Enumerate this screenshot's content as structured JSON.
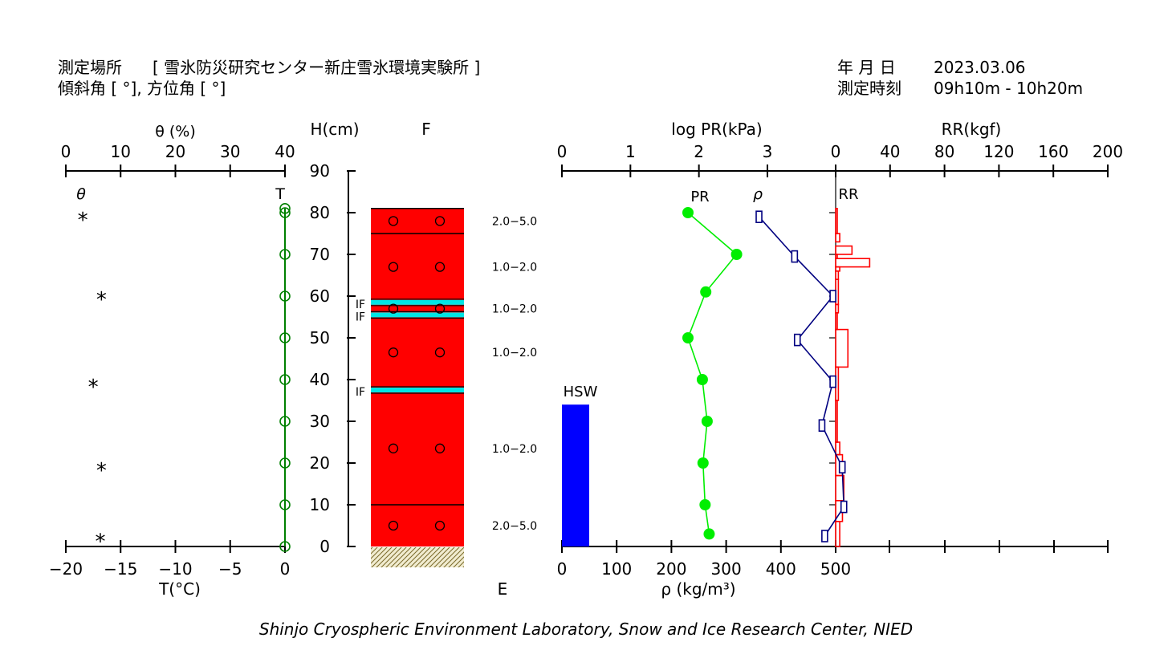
{
  "header": {
    "site_label": "測定場所",
    "site_name": "[ 雪氷防災研究センター新庄雪氷環境実験所 ]",
    "slope_label": "傾斜角 [ °], 方位角 [ °]",
    "date_label": "年 月 日",
    "date_value": "2023.03.06",
    "time_label": "測定時刻",
    "time_value": "09h10m - 10h20m"
  },
  "footer": {
    "credit": "Shinjo Cryospheric Environment Laboratory, Snow and Ice Research Center, NIED"
  },
  "colors": {
    "temperature": "#008000",
    "snow": "#ff0000",
    "ice": "#00e5e5",
    "pr": "#00ee00",
    "density": "#000080",
    "rr": "#ff0000",
    "hsw": "#0000ff"
  },
  "chart_data": [
    {
      "type": "scatter",
      "name": "temperature-and-water-content",
      "title": "θ (%)",
      "xlabel": "T(°C)",
      "x_top_ticks": [
        "0",
        "10",
        "20",
        "30",
        "40"
      ],
      "x_top_range": [
        0,
        40
      ],
      "x_bottom_ticks": [
        "−20",
        "−15",
        "−10",
        "−5",
        "0"
      ],
      "x_bottom_range": [
        -20,
        0
      ],
      "theta_label": "θ",
      "t_label": "T",
      "temperature": {
        "heights": [
          81,
          80,
          70,
          60,
          50,
          40,
          30,
          20,
          10,
          0
        ],
        "values": [
          0,
          0,
          0,
          0,
          0,
          0,
          0,
          0,
          0,
          0
        ]
      },
      "water_content": {
        "heights": [
          79,
          60,
          39,
          19,
          2
        ],
        "values": [
          3.1,
          6.5,
          5.0,
          6.5,
          6.3
        ]
      }
    },
    {
      "type": "table",
      "name": "snow-stratigraphy",
      "ylabel": "H(cm)",
      "y_ticks": [
        "0",
        "10",
        "20",
        "30",
        "40",
        "50",
        "60",
        "70",
        "80",
        "90"
      ],
      "y_range": [
        0,
        90
      ],
      "column_label": "F",
      "bottom_label": "E",
      "total_height": 81,
      "layer_boundaries": [
        75,
        10
      ],
      "ice_layers": [
        {
          "height": 58.5,
          "label": "IF"
        },
        {
          "height": 55.5,
          "label": "IF"
        },
        {
          "height": 37.5,
          "label": "IF"
        }
      ],
      "grain_marks": [
        78,
        67,
        57,
        46.5,
        23.5,
        5
      ],
      "grain_sizes": [
        {
          "height": 78,
          "value": "2.0−5.0"
        },
        {
          "height": 67,
          "value": "1.0−2.0"
        },
        {
          "height": 57,
          "value": "1.0−2.0"
        },
        {
          "height": 46.5,
          "value": "1.0−2.0"
        },
        {
          "height": 23.5,
          "value": "1.0−2.0"
        },
        {
          "height": 5,
          "value": "2.0−5.0"
        }
      ]
    },
    {
      "type": "line",
      "name": "hardness-density-ram",
      "pr_axis_label": "log PR(kPa)",
      "pr_ticks": [
        "0",
        "1",
        "2",
        "3"
      ],
      "pr_range": [
        0,
        3
      ],
      "rr_axis_label": "RR(kgf)",
      "rr_ticks": [
        "0",
        "40",
        "80",
        "120",
        "160",
        "200"
      ],
      "rr_range": [
        0,
        200
      ],
      "density_axis_label": "ρ (kg/m³)",
      "density_ticks": [
        "0",
        "100",
        "200",
        "300",
        "400",
        "500"
      ],
      "density_range": [
        0,
        500
      ],
      "pr_label": "PR",
      "density_label": "ρ",
      "rr_label": "RR",
      "hsw_label": "HSW",
      "hsw_value": 34,
      "pr_series": {
        "heights": [
          80,
          70,
          61,
          50,
          40,
          30,
          20,
          10,
          3
        ],
        "values": [
          1.84,
          2.55,
          2.1,
          1.84,
          2.05,
          2.12,
          2.06,
          2.09,
          2.15
        ]
      },
      "density_series": {
        "heights": [
          79,
          69.5,
          60,
          49.5,
          39.5,
          29,
          19,
          9.5,
          2.5
        ],
        "values": [
          360,
          425,
          495,
          430,
          495,
          475,
          512,
          515,
          480
        ]
      },
      "rr_profile": [
        {
          "top": 81,
          "bottom": 75,
          "value": 1
        },
        {
          "top": 75,
          "bottom": 73,
          "value": 3
        },
        {
          "top": 72,
          "bottom": 70,
          "value": 12
        },
        {
          "top": 70,
          "bottom": 69,
          "value": 1
        },
        {
          "top": 69,
          "bottom": 67,
          "value": 25
        },
        {
          "top": 67,
          "bottom": 66,
          "value": 3
        },
        {
          "top": 66,
          "bottom": 64,
          "value": 2
        },
        {
          "top": 64,
          "bottom": 58,
          "value": 2
        },
        {
          "top": 58,
          "bottom": 56,
          "value": 2
        },
        {
          "top": 56,
          "bottom": 52,
          "value": 1
        },
        {
          "top": 52,
          "bottom": 43,
          "value": 9
        },
        {
          "top": 43,
          "bottom": 35,
          "value": 2
        },
        {
          "top": 35,
          "bottom": 25,
          "value": 1
        },
        {
          "top": 25,
          "bottom": 22,
          "value": 3
        },
        {
          "top": 22,
          "bottom": 17,
          "value": 5
        },
        {
          "top": 17,
          "bottom": 11,
          "value": 6
        },
        {
          "top": 11,
          "bottom": 6,
          "value": 5
        },
        {
          "top": 6,
          "bottom": 0,
          "value": 3
        }
      ]
    }
  ]
}
